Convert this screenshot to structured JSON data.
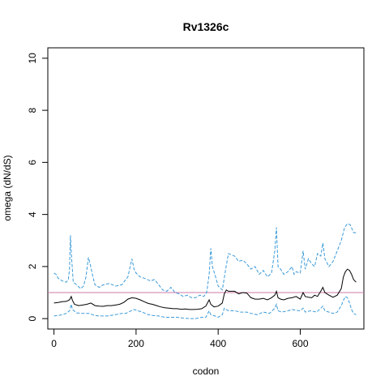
{
  "chart_data": {
    "type": "line",
    "title": "Rv1326c",
    "xlabel": "codon",
    "ylabel": "omega (dN/dS)",
    "xlim": [
      -15,
      755
    ],
    "ylim": [
      -0.4,
      10.4
    ],
    "x_ticks": [
      0,
      200,
      400,
      600
    ],
    "y_ticks": [
      0,
      2,
      4,
      6,
      8,
      10
    ],
    "grid": false,
    "legend": "none",
    "reference_line": {
      "y": 1,
      "color": "#cc79a7"
    },
    "series": [
      {
        "style": "dashed",
        "color": "#3a9ad9",
        "points": [
          [
            0,
            1.75
          ],
          [
            5,
            1.7
          ],
          [
            10,
            1.55
          ],
          [
            20,
            1.45
          ],
          [
            30,
            1.4
          ],
          [
            35,
            1.5
          ],
          [
            38,
            1.9
          ],
          [
            40,
            3.2
          ],
          [
            43,
            2.3
          ],
          [
            47,
            1.4
          ],
          [
            55,
            1.3
          ],
          [
            65,
            1.15
          ],
          [
            72,
            1.25
          ],
          [
            78,
            1.6
          ],
          [
            84,
            2.35
          ],
          [
            88,
            2.1
          ],
          [
            95,
            1.6
          ],
          [
            100,
            1.3
          ],
          [
            110,
            1.2
          ],
          [
            120,
            1.3
          ],
          [
            135,
            1.35
          ],
          [
            150,
            1.25
          ],
          [
            165,
            1.3
          ],
          [
            180,
            1.6
          ],
          [
            190,
            2.3
          ],
          [
            195,
            1.9
          ],
          [
            200,
            1.75
          ],
          [
            210,
            1.6
          ],
          [
            220,
            1.55
          ],
          [
            235,
            1.45
          ],
          [
            245,
            1.5
          ],
          [
            255,
            1.3
          ],
          [
            265,
            1.1
          ],
          [
            275,
            1.05
          ],
          [
            285,
            1.2
          ],
          [
            295,
            1.0
          ],
          [
            305,
            0.95
          ],
          [
            315,
            0.85
          ],
          [
            325,
            0.9
          ],
          [
            335,
            0.8
          ],
          [
            345,
            0.8
          ],
          [
            355,
            0.9
          ],
          [
            365,
            0.85
          ],
          [
            372,
            1.0
          ],
          [
            378,
            1.7
          ],
          [
            382,
            2.7
          ],
          [
            386,
            2.0
          ],
          [
            392,
            1.7
          ],
          [
            400,
            1.25
          ],
          [
            410,
            1.1
          ],
          [
            420,
            2.05
          ],
          [
            425,
            2.5
          ],
          [
            432,
            2.45
          ],
          [
            440,
            2.4
          ],
          [
            450,
            2.2
          ],
          [
            460,
            2.25
          ],
          [
            470,
            2.1
          ],
          [
            480,
            1.9
          ],
          [
            490,
            2.0
          ],
          [
            500,
            1.7
          ],
          [
            510,
            1.85
          ],
          [
            520,
            1.6
          ],
          [
            530,
            1.75
          ],
          [
            538,
            2.6
          ],
          [
            542,
            3.5
          ],
          [
            546,
            2.0
          ],
          [
            552,
            1.9
          ],
          [
            560,
            1.7
          ],
          [
            570,
            1.8
          ],
          [
            580,
            2.0
          ],
          [
            585,
            1.7
          ],
          [
            590,
            1.8
          ],
          [
            600,
            1.75
          ],
          [
            607,
            2.6
          ],
          [
            612,
            1.9
          ],
          [
            620,
            2.3
          ],
          [
            628,
            2.1
          ],
          [
            635,
            2.0
          ],
          [
            642,
            2.5
          ],
          [
            650,
            2.4
          ],
          [
            655,
            2.9
          ],
          [
            660,
            2.3
          ],
          [
            670,
            2.0
          ],
          [
            680,
            2.2
          ],
          [
            690,
            2.6
          ],
          [
            700,
            3.0
          ],
          [
            708,
            3.5
          ],
          [
            715,
            3.65
          ],
          [
            722,
            3.6
          ],
          [
            730,
            3.3
          ],
          [
            736,
            3.3
          ]
        ]
      },
      {
        "style": "solid",
        "color": "#000000",
        "points": [
          [
            0,
            0.6
          ],
          [
            10,
            0.62
          ],
          [
            20,
            0.65
          ],
          [
            30,
            0.66
          ],
          [
            38,
            0.72
          ],
          [
            42,
            0.85
          ],
          [
            45,
            0.7
          ],
          [
            50,
            0.55
          ],
          [
            60,
            0.5
          ],
          [
            70,
            0.52
          ],
          [
            80,
            0.55
          ],
          [
            90,
            0.6
          ],
          [
            100,
            0.5
          ],
          [
            110,
            0.48
          ],
          [
            120,
            0.47
          ],
          [
            130,
            0.5
          ],
          [
            140,
            0.5
          ],
          [
            150,
            0.52
          ],
          [
            160,
            0.55
          ],
          [
            170,
            0.62
          ],
          [
            180,
            0.75
          ],
          [
            190,
            0.8
          ],
          [
            200,
            0.78
          ],
          [
            210,
            0.72
          ],
          [
            220,
            0.65
          ],
          [
            230,
            0.58
          ],
          [
            240,
            0.55
          ],
          [
            250,
            0.5
          ],
          [
            260,
            0.45
          ],
          [
            270,
            0.42
          ],
          [
            280,
            0.4
          ],
          [
            290,
            0.38
          ],
          [
            300,
            0.38
          ],
          [
            310,
            0.36
          ],
          [
            320,
            0.37
          ],
          [
            330,
            0.35
          ],
          [
            340,
            0.35
          ],
          [
            350,
            0.36
          ],
          [
            360,
            0.38
          ],
          [
            370,
            0.48
          ],
          [
            378,
            0.72
          ],
          [
            382,
            0.55
          ],
          [
            390,
            0.45
          ],
          [
            400,
            0.48
          ],
          [
            410,
            0.6
          ],
          [
            415,
            0.95
          ],
          [
            420,
            1.1
          ],
          [
            425,
            1.05
          ],
          [
            430,
            1.05
          ],
          [
            440,
            1.05
          ],
          [
            450,
            0.95
          ],
          [
            460,
            1.0
          ],
          [
            470,
            0.98
          ],
          [
            480,
            0.8
          ],
          [
            490,
            0.75
          ],
          [
            500,
            0.75
          ],
          [
            510,
            0.78
          ],
          [
            520,
            0.72
          ],
          [
            530,
            0.8
          ],
          [
            538,
            0.9
          ],
          [
            542,
            1.05
          ],
          [
            546,
            0.8
          ],
          [
            552,
            0.75
          ],
          [
            560,
            0.72
          ],
          [
            570,
            0.78
          ],
          [
            580,
            0.8
          ],
          [
            590,
            0.85
          ],
          [
            600,
            0.75
          ],
          [
            607,
            1.0
          ],
          [
            612,
            0.85
          ],
          [
            620,
            0.82
          ],
          [
            628,
            0.8
          ],
          [
            635,
            0.9
          ],
          [
            642,
            0.85
          ],
          [
            650,
            1.05
          ],
          [
            655,
            1.2
          ],
          [
            660,
            1.0
          ],
          [
            670,
            0.9
          ],
          [
            680,
            0.82
          ],
          [
            690,
            0.9
          ],
          [
            700,
            1.15
          ],
          [
            705,
            1.6
          ],
          [
            710,
            1.8
          ],
          [
            715,
            1.9
          ],
          [
            720,
            1.85
          ],
          [
            725,
            1.7
          ],
          [
            730,
            1.5
          ],
          [
            736,
            1.4
          ]
        ]
      },
      {
        "style": "dashed",
        "color": "#3a9ad9",
        "points": [
          [
            0,
            0.1
          ],
          [
            10,
            0.12
          ],
          [
            20,
            0.15
          ],
          [
            30,
            0.2
          ],
          [
            38,
            0.3
          ],
          [
            42,
            0.55
          ],
          [
            45,
            0.35
          ],
          [
            55,
            0.22
          ],
          [
            70,
            0.2
          ],
          [
            85,
            0.2
          ],
          [
            100,
            0.12
          ],
          [
            110,
            0.1
          ],
          [
            130,
            0.1
          ],
          [
            150,
            0.15
          ],
          [
            165,
            0.2
          ],
          [
            175,
            0.2
          ],
          [
            185,
            0.28
          ],
          [
            195,
            0.35
          ],
          [
            205,
            0.3
          ],
          [
            215,
            0.25
          ],
          [
            230,
            0.15
          ],
          [
            240,
            0.12
          ],
          [
            255,
            0.1
          ],
          [
            270,
            0.05
          ],
          [
            285,
            0.05
          ],
          [
            300,
            0.05
          ],
          [
            315,
            0.02
          ],
          [
            330,
            0.0
          ],
          [
            345,
            0.0
          ],
          [
            360,
            0.05
          ],
          [
            370,
            0.05
          ],
          [
            378,
            0.3
          ],
          [
            382,
            0.15
          ],
          [
            392,
            0.1
          ],
          [
            400,
            0.05
          ],
          [
            410,
            0.15
          ],
          [
            415,
            0.4
          ],
          [
            425,
            0.3
          ],
          [
            440,
            0.3
          ],
          [
            455,
            0.25
          ],
          [
            470,
            0.25
          ],
          [
            480,
            0.2
          ],
          [
            495,
            0.15
          ],
          [
            510,
            0.25
          ],
          [
            525,
            0.2
          ],
          [
            538,
            0.4
          ],
          [
            542,
            0.55
          ],
          [
            546,
            0.3
          ],
          [
            555,
            0.25
          ],
          [
            570,
            0.3
          ],
          [
            580,
            0.35
          ],
          [
            590,
            0.32
          ],
          [
            600,
            0.3
          ],
          [
            607,
            0.4
          ],
          [
            612,
            0.25
          ],
          [
            625,
            0.3
          ],
          [
            640,
            0.25
          ],
          [
            650,
            0.4
          ],
          [
            655,
            0.48
          ],
          [
            660,
            0.3
          ],
          [
            670,
            0.25
          ],
          [
            680,
            0.2
          ],
          [
            690,
            0.25
          ],
          [
            700,
            0.5
          ],
          [
            705,
            0.7
          ],
          [
            710,
            0.85
          ],
          [
            715,
            0.8
          ],
          [
            720,
            0.6
          ],
          [
            725,
            0.35
          ],
          [
            730,
            0.2
          ],
          [
            736,
            0.15
          ]
        ]
      }
    ]
  }
}
